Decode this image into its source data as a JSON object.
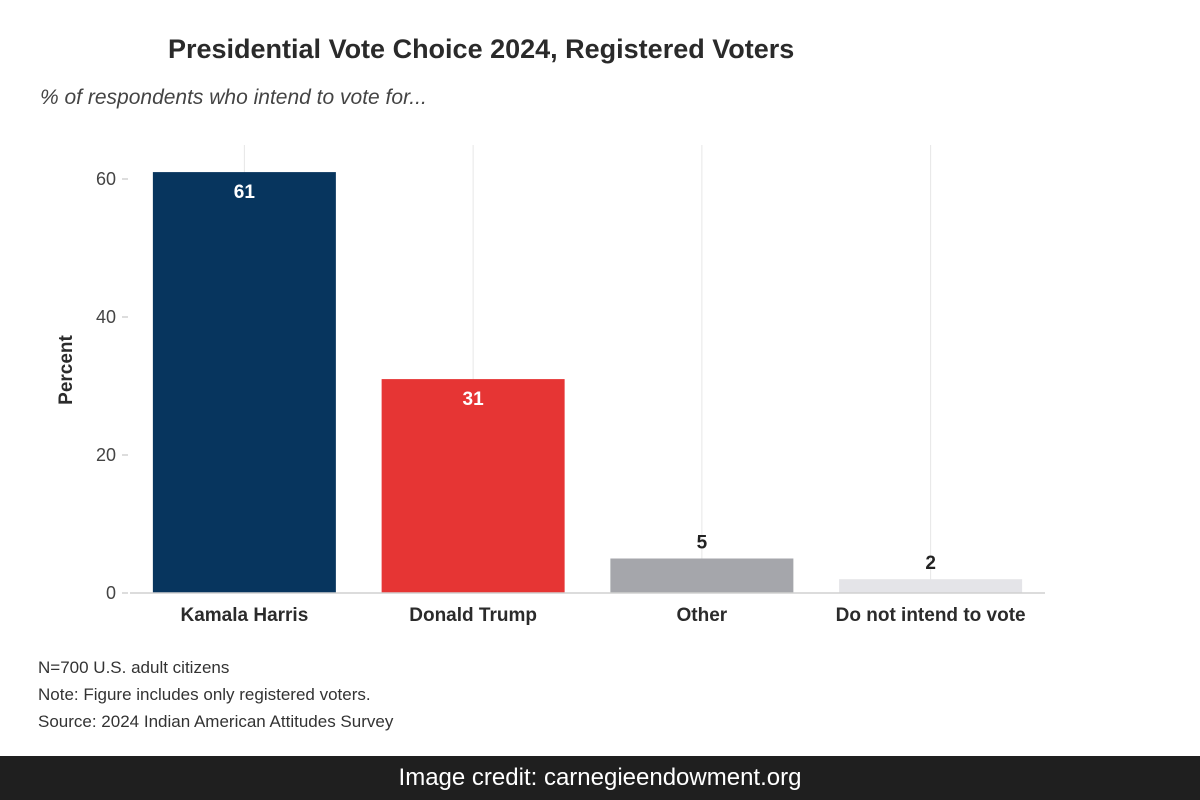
{
  "chart_data": {
    "type": "bar",
    "title": "Presidential Vote Choice 2024, Registered Voters",
    "subtitle": "% of respondents who intend to vote for...",
    "xlabel": "",
    "ylabel": "Percent",
    "ylim": [
      0,
      65
    ],
    "yticks": [
      0,
      20,
      40,
      60
    ],
    "categories": [
      "Kamala Harris",
      "Donald Trump",
      "Other",
      "Do not intend to vote"
    ],
    "values": [
      61,
      31,
      5,
      2
    ],
    "data_labels": [
      "61",
      "31",
      "5",
      "2"
    ],
    "colors": [
      "#07355e",
      "#e63534",
      "#a5a6ab",
      "#e4e4e8"
    ],
    "label_colors": [
      "#ffffff",
      "#ffffff",
      "#222222",
      "#222222"
    ],
    "grid": "vertical",
    "legend": "none"
  },
  "notes": [
    "N=700 U.S. adult citizens",
    "Note: Figure includes only registered voters.",
    "Source: 2024 Indian American Attitudes Survey"
  ],
  "credit": "Image credit: carnegieendowment.org"
}
